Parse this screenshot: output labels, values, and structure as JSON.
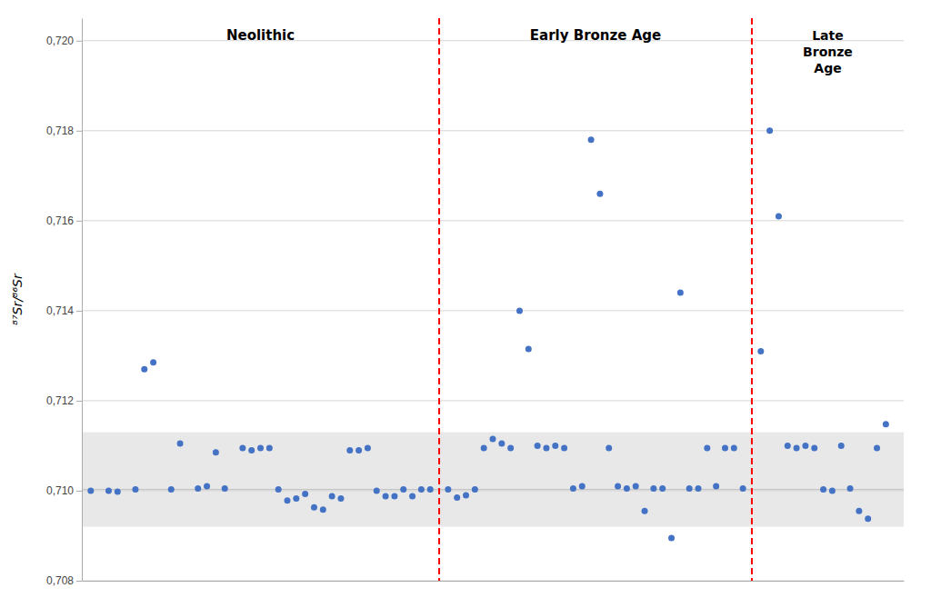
{
  "chart_data": {
    "type": "scatter",
    "ylabel": "⁸⁷Sr/⁸⁶Sr",
    "xlim": [
      0,
      92
    ],
    "ylim": [
      0.708,
      0.7205
    ],
    "yticks": [
      {
        "value": 0.708,
        "label": "0,708"
      },
      {
        "value": 0.71,
        "label": "0,710"
      },
      {
        "value": 0.712,
        "label": "0,712"
      },
      {
        "value": 0.714,
        "label": "0,714"
      },
      {
        "value": 0.716,
        "label": "0,716"
      },
      {
        "value": 0.718,
        "label": "0,718"
      },
      {
        "value": 0.72,
        "label": "0,720"
      }
    ],
    "tick_labels": "y",
    "grid": true,
    "shaded_band": [
      0.7092,
      0.7113
    ],
    "shaded_color": "#e8e8e8",
    "ref_line": 0.71003,
    "vlines": [
      40.0,
      75.0
    ],
    "vline_color": "#FF0000",
    "annotations": [
      "Neolithic",
      "Early Bronze Age",
      "Late\nBronze\nAge"
    ],
    "series": [
      {
        "color": "#4472C4",
        "x": [
          1,
          3,
          4,
          6,
          7,
          8,
          10,
          11,
          13,
          14,
          15,
          16,
          18,
          19,
          20,
          21,
          22,
          23,
          24,
          25,
          26,
          27,
          28,
          29,
          30,
          31,
          32,
          33,
          34,
          35,
          36,
          37,
          38,
          39
        ],
        "values": [
          0.71,
          0.71,
          0.70998,
          0.71003,
          0.7127,
          0.71285,
          0.71003,
          0.71105,
          0.71005,
          0.7101,
          0.71085,
          0.71005,
          0.71095,
          0.7109,
          0.71095,
          0.71095,
          0.71003,
          0.70978,
          0.70983,
          0.70993,
          0.70963,
          0.70958,
          0.70988,
          0.70983,
          0.7109,
          0.7109,
          0.71095,
          0.71,
          0.70988,
          0.70988,
          0.71003,
          0.70988,
          0.71003,
          0.71003
        ]
      },
      {
        "color": "#4472C4",
        "x": [
          41,
          42,
          43,
          44,
          45,
          46,
          47,
          48,
          49,
          50,
          51,
          52,
          53,
          54,
          55,
          56,
          57,
          58,
          59,
          60,
          61,
          62,
          63,
          64,
          65,
          66,
          67,
          68,
          69,
          70,
          71,
          72,
          73,
          74
        ],
        "values": [
          0.71003,
          0.70985,
          0.7099,
          0.71003,
          0.71095,
          0.71115,
          0.71105,
          0.71095,
          0.714,
          0.71315,
          0.711,
          0.71095,
          0.711,
          0.71095,
          0.71005,
          0.7101,
          0.7178,
          0.7166,
          0.71095,
          0.7101,
          0.71005,
          0.7101,
          0.70955,
          0.71005,
          0.71005,
          0.70895,
          0.7144,
          0.71005,
          0.71005,
          0.71095,
          0.7101,
          0.71095,
          0.71095,
          0.71005
        ]
      },
      {
        "color": "#4472C4",
        "x": [
          76,
          77,
          78,
          79,
          80,
          81,
          82,
          83,
          84,
          85,
          86,
          87,
          88,
          89,
          90
        ],
        "values": [
          0.7131,
          0.718,
          0.7161,
          0.711,
          0.71095,
          0.711,
          0.71095,
          0.71003,
          0.71,
          0.711,
          0.71005,
          0.70955,
          0.70938,
          0.71095,
          0.71148
        ]
      }
    ]
  }
}
